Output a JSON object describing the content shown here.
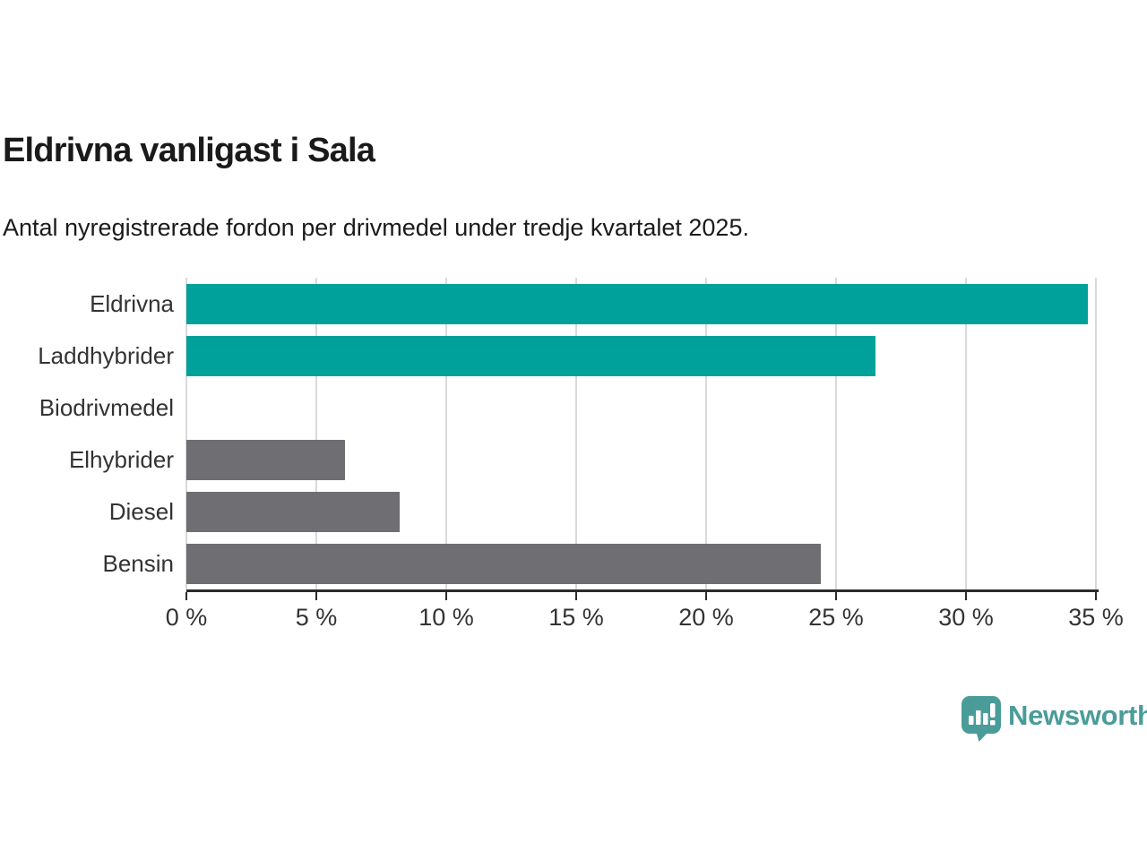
{
  "header": {
    "title": "Eldrivna vanligast i Sala",
    "subtitle": "Antal nyregistrerade fordon per drivmedel under tredje kvartalet 2025."
  },
  "chart_data": {
    "type": "bar",
    "orientation": "horizontal",
    "title": "Eldrivna vanligast i Sala",
    "subtitle": "Antal nyregistrerade fordon per drivmedel under tredje kvartalet 2025.",
    "categories": [
      "Eldrivna",
      "Laddhybrider",
      "Biodrivmedel",
      "Elhybrider",
      "Diesel",
      "Bensin"
    ],
    "values": [
      34.7,
      26.5,
      0,
      6.1,
      8.2,
      24.4
    ],
    "unit": "%",
    "bar_colors": [
      "#00a19a",
      "#00a19a",
      "#6e6e73",
      "#6e6e73",
      "#6e6e73",
      "#6e6e73"
    ],
    "xlim": [
      0,
      35
    ],
    "tick_values": [
      0,
      5,
      10,
      15,
      20,
      25,
      30,
      35
    ],
    "x_tick_labels": [
      "0 %",
      "5 %",
      "10 %",
      "15 %",
      "20 %",
      "25 %",
      "30 %",
      "35 %"
    ],
    "grid": "vertical-on",
    "legend": "none"
  },
  "colors": {
    "accent_teal": "#00a19a",
    "neutral_gray": "#6e6e73",
    "gridline": "#d9d9d9",
    "axis": "#2b2b2b",
    "text_dark": "#1a1a1a",
    "text_label": "#333333",
    "logo_teal": "#4a9c99"
  },
  "branding": {
    "logo_text": "Newsworthy",
    "logo_icon": "newsworthy-speech-bubble-bar-chart-icon"
  }
}
